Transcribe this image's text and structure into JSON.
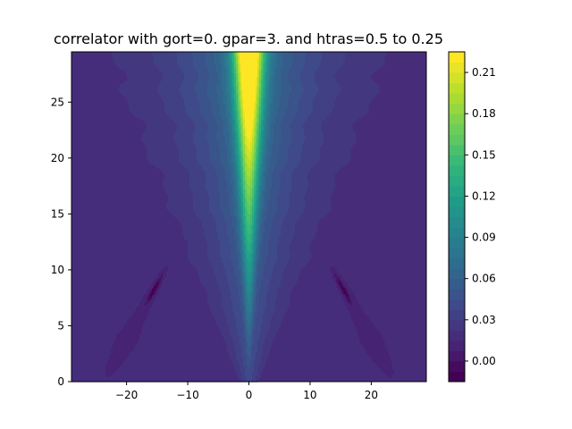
{
  "chart_data": {
    "type": "contourf",
    "title": "correlator with gort=0.  gpar=3. and htras=0.5 to 0.25",
    "xlabel": "",
    "ylabel": "",
    "xlim": [
      -29,
      29
    ],
    "ylim": [
      0,
      29.5
    ],
    "x_ticks": [
      -20,
      -10,
      0,
      10,
      20
    ],
    "x_tick_labels": [
      "−20",
      "−10",
      "0",
      "10",
      "20"
    ],
    "y_ticks": [
      0,
      5,
      10,
      15,
      20,
      25
    ],
    "y_tick_labels": [
      "0",
      "5",
      "10",
      "15",
      "20",
      "25"
    ],
    "colorbar": {
      "colormap": "viridis",
      "levels": [
        -0.015,
        -0.0075,
        0.0,
        0.0075,
        0.015,
        0.0225,
        0.03,
        0.0375,
        0.045,
        0.0525,
        0.06,
        0.0675,
        0.075,
        0.0825,
        0.09,
        0.0975,
        0.105,
        0.1125,
        0.12,
        0.1275,
        0.135,
        0.1425,
        0.15,
        0.1575,
        0.165,
        0.1725,
        0.18,
        0.1875,
        0.195,
        0.2025,
        0.21,
        0.2175,
        0.225
      ],
      "range": [
        -0.015,
        0.225
      ],
      "ticks": [
        0.0,
        0.03,
        0.06,
        0.09,
        0.12,
        0.15,
        0.18,
        0.21
      ],
      "tick_labels": [
        "0.00",
        "0.03",
        "0.06",
        "0.09",
        "0.12",
        "0.15",
        "0.18",
        "0.21"
      ]
    },
    "field": {
      "description": "peak centered at x=0 growing with y, spreading into a widening cone",
      "peak_at_top": 0.22,
      "background": 0.015,
      "cone_half_width_at_top": 22,
      "negative_lobes": [
        {
          "x": -15.5,
          "y": 8.2
        },
        {
          "x": 15.5,
          "y": 8.2
        }
      ]
    }
  }
}
